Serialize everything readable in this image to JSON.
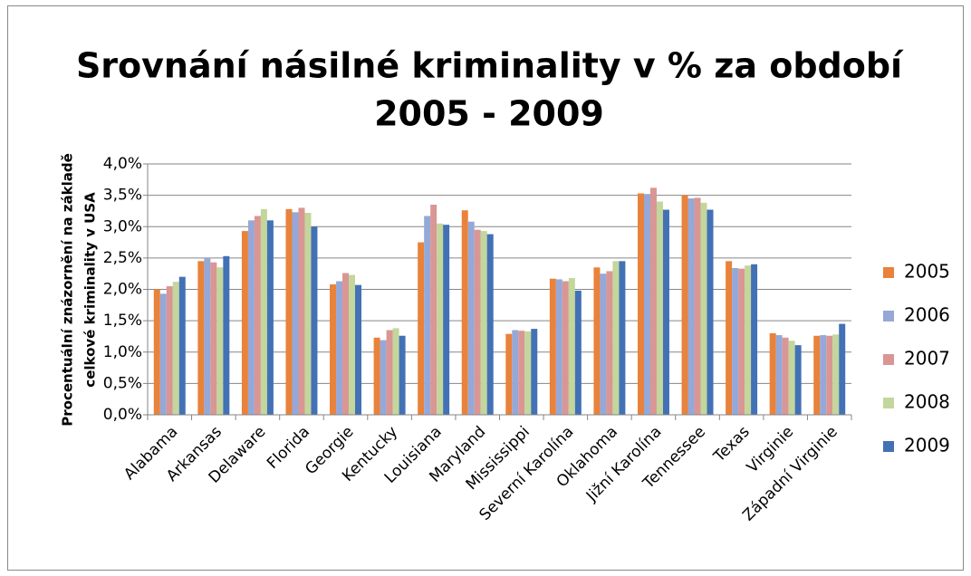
{
  "chart_data": {
    "type": "bar",
    "title": [
      "Srovnání násilné kriminality v % za období",
      "2005 - 2009"
    ],
    "ylabel": [
      "Procentuální znázornění na základě",
      "celkové kriminality v USA"
    ],
    "categories": [
      "Alabama",
      "Arkansas",
      "Delaware",
      "Florida",
      "Georgie",
      "Kentucky",
      "Louisiana",
      "Maryland",
      "Mississippi",
      "Severní Karolína",
      "Oklahoma",
      "Jižní Karolína",
      "Tennessee",
      "Texas",
      "Virginie",
      "Západní Virginie"
    ],
    "series": [
      {
        "name": "2005",
        "color": "#e9823a",
        "values": [
          2.0,
          2.45,
          2.93,
          3.28,
          2.08,
          1.23,
          2.75,
          3.26,
          1.29,
          2.17,
          2.35,
          3.53,
          3.5,
          2.45,
          1.3,
          1.26
        ]
      },
      {
        "name": "2006",
        "color": "#95a8d8",
        "values": [
          1.93,
          2.5,
          3.1,
          3.23,
          2.13,
          1.19,
          3.17,
          3.08,
          1.35,
          2.16,
          2.25,
          3.52,
          3.45,
          2.34,
          1.27,
          1.27
        ]
      },
      {
        "name": "2007",
        "color": "#d99694",
        "values": [
          2.05,
          2.43,
          3.17,
          3.3,
          2.26,
          1.35,
          3.35,
          2.95,
          1.34,
          2.13,
          2.29,
          3.62,
          3.46,
          2.33,
          1.23,
          1.26
        ]
      },
      {
        "name": "2008",
        "color": "#c3d69b",
        "values": [
          2.12,
          2.35,
          3.28,
          3.22,
          2.23,
          1.38,
          3.05,
          2.93,
          1.33,
          2.18,
          2.45,
          3.4,
          3.38,
          2.38,
          1.18,
          1.28
        ]
      },
      {
        "name": "2009",
        "color": "#4271b5",
        "values": [
          2.2,
          2.53,
          3.1,
          3.0,
          2.07,
          1.26,
          3.03,
          2.88,
          1.37,
          1.98,
          2.45,
          3.27,
          3.27,
          2.4,
          1.11,
          1.45
        ]
      }
    ],
    "ylim": [
      0,
      4
    ],
    "yticks": [
      {
        "value": 0,
        "label": "0,0%"
      },
      {
        "value": 0.5,
        "label": "0,5%"
      },
      {
        "value": 1,
        "label": "1,0%"
      },
      {
        "value": 1.5,
        "label": "1,5%"
      },
      {
        "value": 2,
        "label": "2,0%"
      },
      {
        "value": 2.5,
        "label": "2,5%"
      },
      {
        "value": 3,
        "label": "3,0%"
      },
      {
        "value": 3.5,
        "label": "3,5%"
      },
      {
        "value": 4,
        "label": "4,0%"
      }
    ],
    "grid": true,
    "legend": "right"
  }
}
